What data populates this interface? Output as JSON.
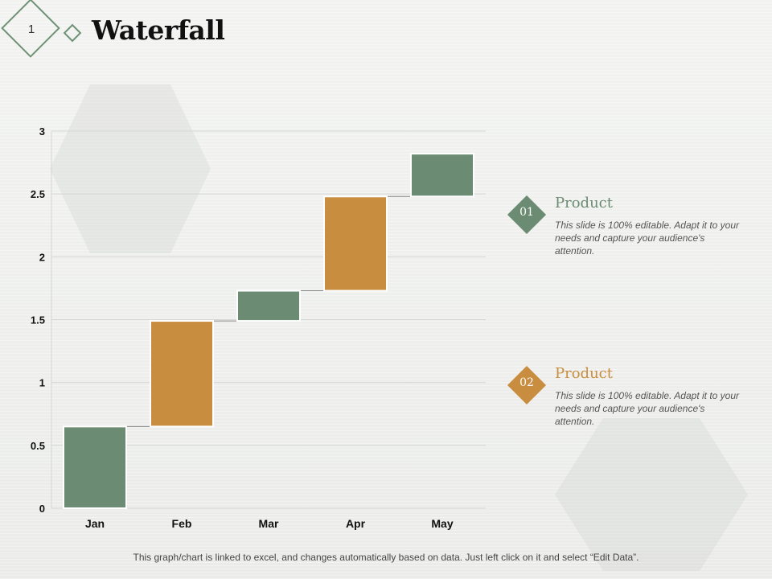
{
  "page_number": "1",
  "title": "Waterfall",
  "chart_data": {
    "type": "bar",
    "subtype": "waterfall",
    "categories": [
      "Jan",
      "Feb",
      "Mar",
      "Apr",
      "May"
    ],
    "base": [
      0,
      0.65,
      1.49,
      1.73,
      2.48
    ],
    "values": [
      0.65,
      0.84,
      0.24,
      0.75,
      0.34
    ],
    "colors": [
      "#6b8b72",
      "#c98d3f",
      "#6b8b72",
      "#c98d3f",
      "#6b8b72"
    ],
    "ylim": [
      0,
      3
    ],
    "yticks": [
      "0",
      "0.5",
      "1",
      "1.5",
      "2",
      "2.5",
      "3"
    ],
    "ytick_values": [
      0,
      0.5,
      1,
      1.5,
      2,
      2.5,
      3
    ],
    "title": "",
    "xlabel": "",
    "ylabel": "",
    "grid": true,
    "legend": "none"
  },
  "cards": [
    {
      "number": "01",
      "heading": "Product",
      "text": "This slide is 100% editable. Adapt it to your needs and capture your audience's attention.",
      "color": "#6b8b72"
    },
    {
      "number": "02",
      "heading": "Product",
      "text": "This slide is 100% editable. Adapt it to your needs and capture your audience's attention.",
      "color": "#c98d3f"
    }
  ],
  "footer": "This graph/chart is linked to excel, and changes automatically based on data. Just left click on it and select “Edit Data”."
}
